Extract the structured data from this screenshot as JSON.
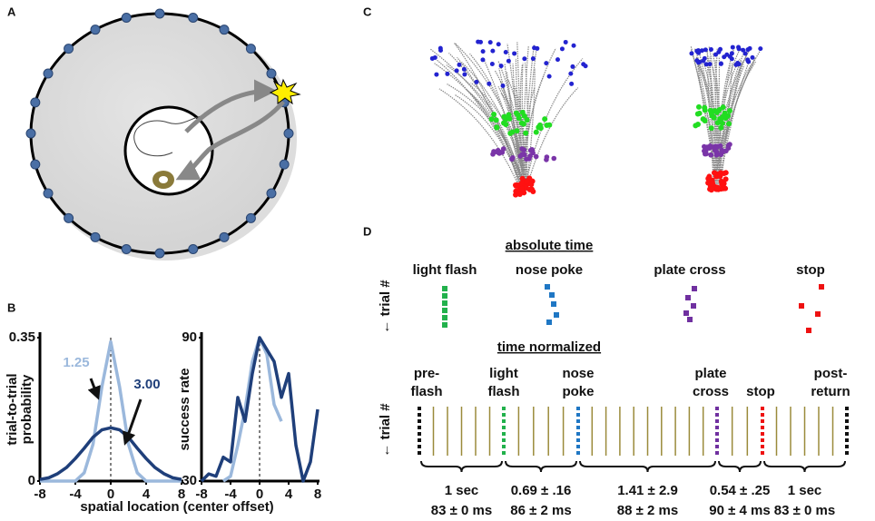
{
  "panel_labels": [
    "A",
    "B",
    "C",
    "D"
  ],
  "chart_data": [
    {
      "type": "line",
      "ylabel": [
        "trial-to-trial",
        "probability"
      ],
      "xlabel": "spatial location (center offset)",
      "x": [
        -8,
        -7,
        -6,
        -5,
        -4,
        -3,
        -2,
        -1,
        0,
        1,
        2,
        3,
        4,
        5,
        6,
        7,
        8
      ],
      "series": [
        {
          "name": "1.25",
          "color": "#9bb8dc",
          "values": [
            0,
            0,
            0,
            0,
            0,
            0.02,
            0.09,
            0.23,
            0.34,
            0.23,
            0.09,
            0.02,
            0,
            0,
            0,
            0,
            0
          ]
        },
        {
          "name": "3.00",
          "color": "#1f3f7a",
          "values": [
            0.004,
            0.008,
            0.018,
            0.033,
            0.055,
            0.08,
            0.107,
            0.125,
            0.13,
            0.125,
            0.107,
            0.08,
            0.055,
            0.033,
            0.018,
            0.008,
            0.004
          ]
        }
      ],
      "xlim": [
        -8,
        8
      ],
      "ylim": [
        0,
        0.35
      ],
      "xticks": [
        -8,
        -4,
        0,
        4,
        8
      ],
      "yticks": [
        0,
        0.35
      ],
      "reference_x": 0
    },
    {
      "type": "line",
      "ylabel": [
        "success rate"
      ],
      "x": [
        -8,
        -7,
        -6,
        -5,
        -4,
        -3,
        -2,
        -1,
        0,
        1,
        2,
        3,
        4,
        5,
        6,
        7,
        8
      ],
      "series": [
        {
          "color": "#9bb8dc",
          "values": [
            null,
            null,
            null,
            30,
            32,
            45,
            60,
            80,
            90,
            83,
            62,
            55,
            null,
            null,
            null,
            null,
            null
          ]
        },
        {
          "color": "#1f3f7a",
          "values": [
            30,
            33,
            32,
            40,
            38,
            65,
            55,
            75,
            90,
            85,
            80,
            65,
            75,
            45,
            30,
            38,
            60
          ]
        }
      ],
      "xlim": [
        -8,
        8
      ],
      "ylim": [
        30,
        90
      ],
      "xticks": [
        -8,
        -4,
        0,
        4,
        8
      ],
      "yticks": [
        30,
        90
      ],
      "reference_x": 0
    }
  ],
  "panel_d": {
    "absolute_title": "absolute time",
    "trial_label": "← trial #",
    "events": [
      "light flash",
      "nose poke",
      "plate cross",
      "stop"
    ],
    "normalized_title": "time normalized",
    "stages": [
      [
        "pre-",
        "flash"
      ],
      [
        "light",
        "flash"
      ],
      [
        "nose",
        "poke"
      ],
      [
        "plate",
        "cross"
      ],
      [
        "stop"
      ],
      [
        "post-",
        "return"
      ]
    ],
    "durations": [
      {
        "time": "1 sec",
        "ms": "83 ± 0 ms"
      },
      {
        "time": "0.69 ± .16",
        "ms": "86 ±  2 ms"
      },
      {
        "time": "1.41 ± 2.9",
        "ms": "88 ± 2 ms"
      },
      {
        "time": "0.54 ± .25",
        "ms": "90 ± 4 ms"
      },
      {
        "time": "1 sec",
        "ms": "83 ± 0 ms"
      }
    ]
  }
}
